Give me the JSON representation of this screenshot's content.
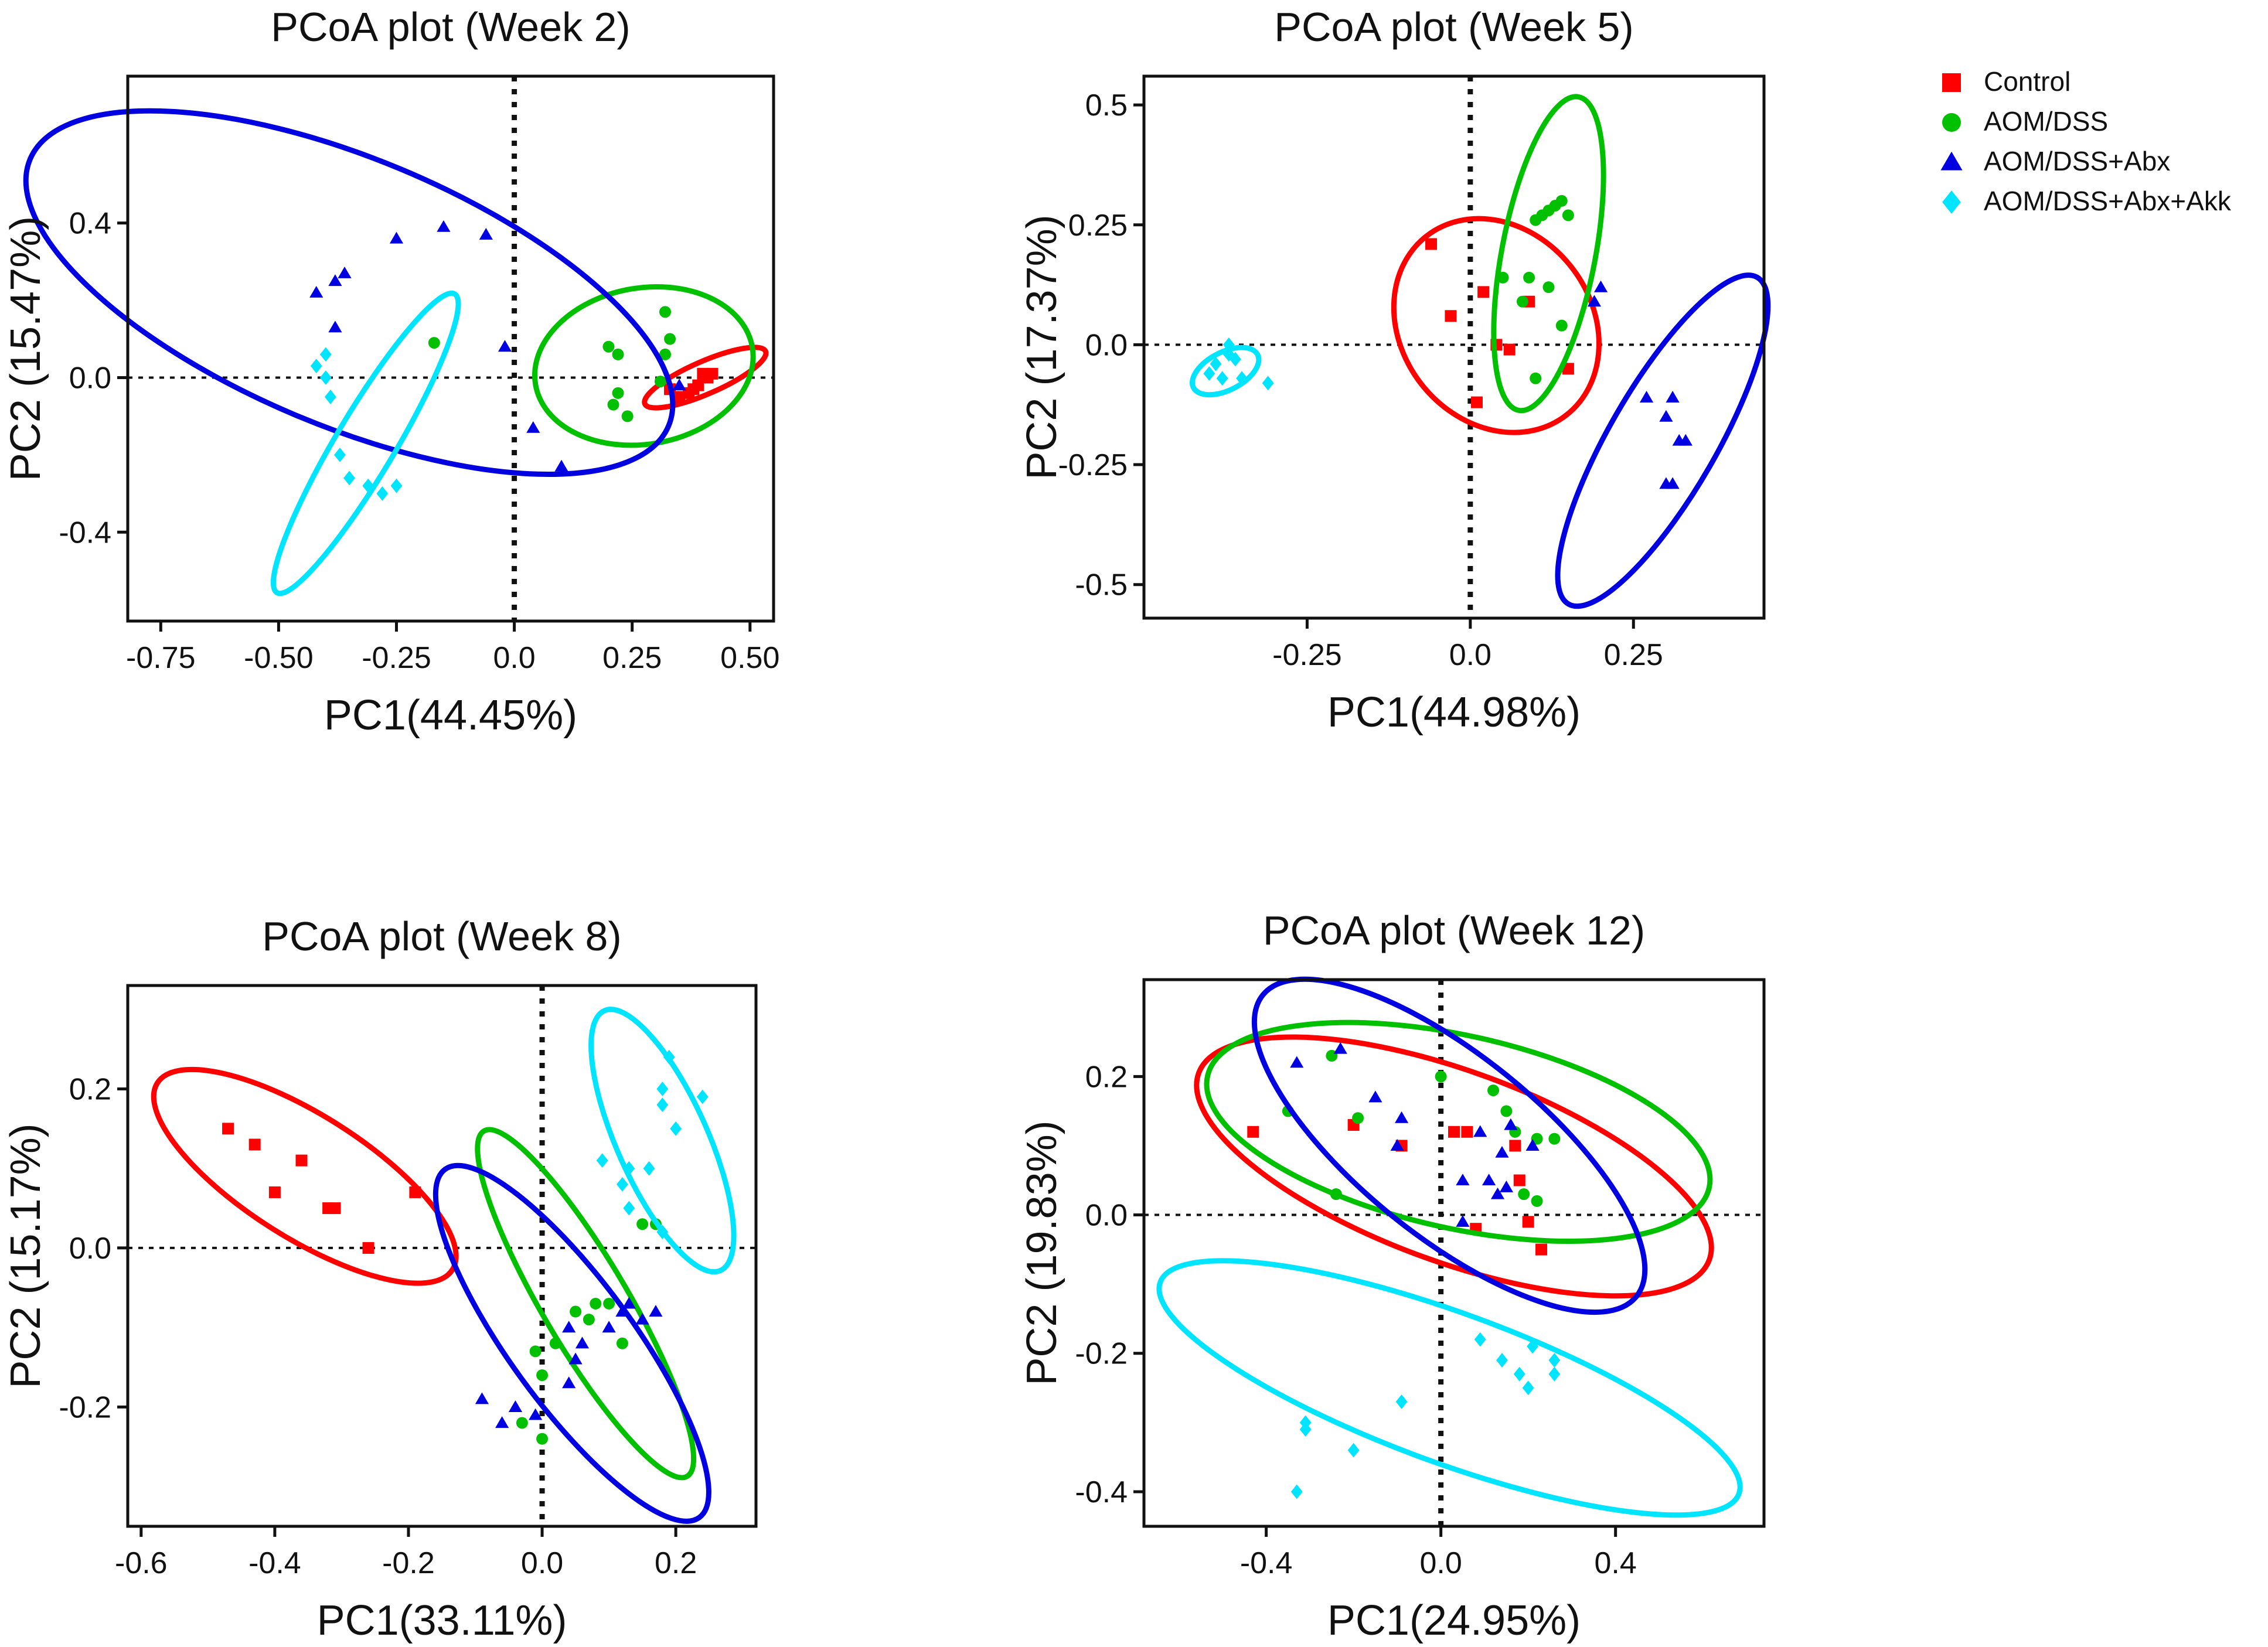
{
  "legend": {
    "placement": "top-right",
    "items": [
      {
        "label": "Control",
        "color": "#ff0000",
        "marker": "square"
      },
      {
        "label": "AOM/DSS",
        "color": "#00c000",
        "marker": "circle"
      },
      {
        "label": "AOM/DSS+Abx",
        "color": "#0000e0",
        "marker": "triangle"
      },
      {
        "label": "AOM/DSS+Abx+Akk",
        "color": "#00e5ff",
        "marker": "diamond"
      }
    ]
  },
  "chart_data": [
    {
      "type": "scatter",
      "title": "PCoA plot (Week 2)",
      "xlabel": "PC1(44.45%)",
      "ylabel": "PC2 (15.47%)",
      "xlim": [
        -0.82,
        0.55
      ],
      "ylim": [
        -0.63,
        0.78
      ],
      "xticks": [
        -0.75,
        -0.5,
        -0.25,
        0.0,
        0.25,
        0.5
      ],
      "xtick_labels": [
        "-0.75",
        "-0.50",
        "-0.25",
        "0.0",
        "0.25",
        "0.50"
      ],
      "yticks": [
        -0.4,
        0.0,
        0.4
      ],
      "ytick_labels": [
        "-0.4",
        "0.0",
        "0.4"
      ],
      "series": [
        {
          "name": "Control",
          "points": [
            [
              0.37,
              -0.04
            ],
            [
              0.39,
              -0.02
            ],
            [
              0.4,
              0.01
            ],
            [
              0.41,
              0.0
            ],
            [
              0.35,
              -0.05
            ],
            [
              0.33,
              -0.03
            ],
            [
              0.42,
              0.01
            ],
            [
              0.38,
              -0.03
            ]
          ],
          "ellipse": {
            "cx": 0.405,
            "cy": 0.0,
            "rx": 0.145,
            "ry": 0.04,
            "angle": 28
          }
        },
        {
          "name": "AOM/DSS",
          "points": [
            [
              -0.17,
              0.09
            ],
            [
              0.2,
              0.08
            ],
            [
              0.22,
              0.06
            ],
            [
              0.32,
              0.17
            ],
            [
              0.33,
              0.1
            ],
            [
              0.32,
              0.06
            ],
            [
              0.22,
              -0.04
            ],
            [
              0.21,
              -0.07
            ],
            [
              0.24,
              -0.1
            ],
            [
              0.31,
              -0.01
            ]
          ],
          "ellipse": {
            "cx": 0.275,
            "cy": 0.03,
            "rx": 0.235,
            "ry": 0.2,
            "angle": 12
          }
        },
        {
          "name": "AOM/DSS+Abx",
          "points": [
            [
              -0.42,
              0.22
            ],
            [
              -0.38,
              0.25
            ],
            [
              -0.36,
              0.27
            ],
            [
              -0.25,
              0.36
            ],
            [
              -0.15,
              0.39
            ],
            [
              -0.06,
              0.37
            ],
            [
              -0.38,
              0.13
            ],
            [
              -0.02,
              0.08
            ],
            [
              0.04,
              -0.13
            ],
            [
              0.1,
              -0.23
            ],
            [
              0.35,
              -0.02
            ]
          ],
          "ellipse": {
            "cx": -0.35,
            "cy": 0.22,
            "rx": 0.76,
            "ry": 0.33,
            "angle": -27
          }
        },
        {
          "name": "AOM/DSS+Abx+Akk",
          "points": [
            [
              -0.4,
              0.06
            ],
            [
              -0.42,
              0.03
            ],
            [
              -0.4,
              0.0
            ],
            [
              -0.39,
              -0.05
            ],
            [
              -0.37,
              -0.2
            ],
            [
              -0.35,
              -0.26
            ],
            [
              -0.31,
              -0.28
            ],
            [
              -0.28,
              -0.3
            ],
            [
              -0.25,
              -0.28
            ]
          ],
          "ellipse": {
            "cx": -0.315,
            "cy": -0.17,
            "rx": 0.43,
            "ry": 0.065,
            "angle": 64
          }
        }
      ]
    },
    {
      "type": "scatter",
      "title": "PCoA plot (Week 5)",
      "xlabel": "PC1(44.98%)",
      "ylabel": "PC2 (17.37%)",
      "xlim": [
        -0.5,
        0.45
      ],
      "ylim": [
        -0.57,
        0.56
      ],
      "xticks": [
        -0.25,
        0.0,
        0.25
      ],
      "xtick_labels": [
        "-0.25",
        "0.0",
        "0.25"
      ],
      "yticks": [
        -0.5,
        -0.25,
        0.0,
        0.25,
        0.5
      ],
      "ytick_labels": [
        "-0.5",
        "-0.25",
        "0.0",
        "0.25",
        "0.5"
      ],
      "series": [
        {
          "name": "Control",
          "points": [
            [
              -0.06,
              0.21
            ],
            [
              0.02,
              0.11
            ],
            [
              -0.03,
              0.06
            ],
            [
              0.09,
              0.09
            ],
            [
              0.04,
              0.0
            ],
            [
              0.06,
              -0.01
            ],
            [
              0.15,
              -0.05
            ],
            [
              0.01,
              -0.12
            ]
          ],
          "ellipse": {
            "cx": 0.04,
            "cy": 0.04,
            "rx": 0.215,
            "ry": 0.155,
            "angle": -60
          }
        },
        {
          "name": "AOM/DSS",
          "points": [
            [
              0.1,
              0.26
            ],
            [
              0.11,
              0.27
            ],
            [
              0.13,
              0.29
            ],
            [
              0.14,
              0.3
            ],
            [
              0.12,
              0.28
            ],
            [
              0.15,
              0.27
            ],
            [
              0.05,
              0.14
            ],
            [
              0.09,
              0.14
            ],
            [
              0.12,
              0.12
            ],
            [
              0.08,
              0.09
            ],
            [
              0.14,
              0.04
            ],
            [
              0.1,
              -0.07
            ]
          ],
          "ellipse": {
            "cx": 0.12,
            "cy": 0.19,
            "rx": 0.33,
            "ry": 0.072,
            "angle": 82
          }
        },
        {
          "name": "AOM/DSS+Abx",
          "points": [
            [
              0.2,
              0.12
            ],
            [
              0.19,
              0.09
            ],
            [
              0.27,
              -0.11
            ],
            [
              0.31,
              -0.11
            ],
            [
              0.3,
              -0.15
            ],
            [
              0.32,
              -0.2
            ],
            [
              0.33,
              -0.2
            ],
            [
              0.3,
              -0.29
            ],
            [
              0.31,
              -0.29
            ]
          ],
          "ellipse": {
            "cx": 0.295,
            "cy": -0.2,
            "rx": 0.37,
            "ry": 0.085,
            "angle": 67
          }
        },
        {
          "name": "AOM/DSS+Abx+Akk",
          "points": [
            [
              -0.4,
              -0.06
            ],
            [
              -0.39,
              -0.04
            ],
            [
              -0.38,
              -0.07
            ],
            [
              -0.37,
              -0.02
            ],
            [
              -0.36,
              -0.03
            ],
            [
              -0.35,
              -0.07
            ],
            [
              -0.37,
              0.0
            ],
            [
              -0.31,
              -0.08
            ]
          ],
          "ellipse": {
            "cx": -0.375,
            "cy": -0.055,
            "rx": 0.06,
            "ry": 0.035,
            "angle": 35
          }
        }
      ]
    },
    {
      "type": "scatter",
      "title": "PCoA plot (Week 8)",
      "xlabel": "PC1(33.11%)",
      "ylabel": "PC2 (15.17%)",
      "xlim": [
        -0.62,
        0.32
      ],
      "ylim": [
        -0.35,
        0.33
      ],
      "xticks": [
        -0.6,
        -0.4,
        -0.2,
        0.0,
        0.2
      ],
      "xtick_labels": [
        "-0.6",
        "-0.4",
        "-0.2",
        "0.0",
        "0.2"
      ],
      "yticks": [
        -0.2,
        0.0,
        0.2
      ],
      "ytick_labels": [
        "-0.2",
        "0.0",
        "0.2"
      ],
      "series": [
        {
          "name": "Control",
          "points": [
            [
              -0.47,
              0.15
            ],
            [
              -0.43,
              0.13
            ],
            [
              -0.36,
              0.11
            ],
            [
              -0.4,
              0.07
            ],
            [
              -0.32,
              0.05
            ],
            [
              -0.31,
              0.05
            ],
            [
              -0.19,
              0.07
            ],
            [
              -0.26,
              0.0
            ]
          ],
          "ellipse": {
            "cx": -0.355,
            "cy": 0.09,
            "rx": 0.25,
            "ry": 0.08,
            "angle": -28
          }
        },
        {
          "name": "AOM/DSS",
          "points": [
            [
              0.08,
              -0.07
            ],
            [
              0.1,
              -0.07
            ],
            [
              0.07,
              -0.09
            ],
            [
              0.05,
              -0.08
            ],
            [
              0.02,
              -0.12
            ],
            [
              -0.01,
              -0.13
            ],
            [
              0.0,
              -0.16
            ],
            [
              0.12,
              -0.12
            ],
            [
              0.15,
              0.03
            ],
            [
              0.17,
              0.03
            ],
            [
              -0.03,
              -0.22
            ],
            [
              0.0,
              -0.24
            ]
          ],
          "ellipse": {
            "cx": 0.065,
            "cy": -0.07,
            "rx": 0.265,
            "ry": 0.06,
            "angle": -55
          }
        },
        {
          "name": "AOM/DSS+Abx",
          "points": [
            [
              0.13,
              -0.07
            ],
            [
              0.12,
              -0.08
            ],
            [
              0.15,
              -0.09
            ],
            [
              0.04,
              -0.1
            ],
            [
              0.06,
              -0.12
            ],
            [
              0.05,
              -0.14
            ],
            [
              0.1,
              -0.1
            ],
            [
              0.04,
              -0.17
            ],
            [
              -0.09,
              -0.19
            ],
            [
              -0.04,
              -0.2
            ],
            [
              -0.06,
              -0.22
            ],
            [
              -0.01,
              -0.21
            ],
            [
              0.17,
              -0.08
            ]
          ],
          "ellipse": {
            "cx": 0.045,
            "cy": -0.12,
            "rx": 0.29,
            "ry": 0.085,
            "angle": -49
          }
        },
        {
          "name": "AOM/DSS+Abx+Akk",
          "points": [
            [
              0.19,
              0.24
            ],
            [
              0.18,
              0.2
            ],
            [
              0.18,
              0.18
            ],
            [
              0.24,
              0.19
            ],
            [
              0.2,
              0.15
            ],
            [
              0.09,
              0.11
            ],
            [
              0.13,
              0.1
            ],
            [
              0.12,
              0.08
            ],
            [
              0.16,
              0.1
            ],
            [
              0.13,
              0.05
            ],
            [
              0.18,
              0.02
            ]
          ],
          "ellipse": {
            "cx": 0.18,
            "cy": 0.135,
            "rx": 0.185,
            "ry": 0.065,
            "angle": -62
          }
        }
      ]
    },
    {
      "type": "scatter",
      "title": "PCoA plot (Week 12)",
      "xlabel": "PC1(24.95%)",
      "ylabel": "PC2 (19.83%)",
      "xlim": [
        -0.68,
        0.74
      ],
      "ylim": [
        -0.45,
        0.34
      ],
      "xticks": [
        -0.4,
        0.0,
        0.4
      ],
      "xtick_labels": [
        "-0.4",
        "0.0",
        "0.4"
      ],
      "yticks": [
        -0.4,
        -0.2,
        0.0,
        0.2
      ],
      "ytick_labels": [
        "-0.4",
        "-0.2",
        "0.0",
        "0.2"
      ],
      "series": [
        {
          "name": "Control",
          "points": [
            [
              -0.43,
              0.12
            ],
            [
              -0.2,
              0.13
            ],
            [
              -0.09,
              0.1
            ],
            [
              0.03,
              0.12
            ],
            [
              0.06,
              0.12
            ],
            [
              0.17,
              0.1
            ],
            [
              0.18,
              0.05
            ],
            [
              0.08,
              -0.02
            ],
            [
              0.2,
              -0.01
            ],
            [
              0.23,
              -0.05
            ]
          ],
          "ellipse": {
            "cx": 0.03,
            "cy": 0.07,
            "rx": 0.6,
            "ry": 0.14,
            "angle": -13
          }
        },
        {
          "name": "AOM/DSS",
          "points": [
            [
              -0.25,
              0.23
            ],
            [
              -0.19,
              0.14
            ],
            [
              -0.35,
              0.15
            ],
            [
              0.0,
              0.2
            ],
            [
              0.12,
              0.18
            ],
            [
              0.15,
              0.15
            ],
            [
              0.17,
              0.12
            ],
            [
              0.22,
              0.11
            ],
            [
              0.26,
              0.11
            ],
            [
              -0.24,
              0.03
            ],
            [
              0.19,
              0.03
            ],
            [
              0.22,
              0.02
            ]
          ],
          "ellipse": {
            "cx": 0.04,
            "cy": 0.12,
            "rx": 0.58,
            "ry": 0.14,
            "angle": -8
          }
        },
        {
          "name": "AOM/DSS+Abx",
          "points": [
            [
              -0.33,
              0.22
            ],
            [
              -0.23,
              0.24
            ],
            [
              -0.15,
              0.17
            ],
            [
              -0.09,
              0.14
            ],
            [
              -0.1,
              0.1
            ],
            [
              0.09,
              0.12
            ],
            [
              0.16,
              0.13
            ],
            [
              0.14,
              0.09
            ],
            [
              0.21,
              0.1
            ],
            [
              0.05,
              0.05
            ],
            [
              0.11,
              0.05
            ],
            [
              0.15,
              0.04
            ],
            [
              0.13,
              0.03
            ],
            [
              0.05,
              -0.01
            ]
          ],
          "ellipse": {
            "cx": 0.02,
            "cy": 0.1,
            "rx": 0.48,
            "ry": 0.14,
            "angle": -27
          }
        },
        {
          "name": "AOM/DSS+Abx+Akk",
          "points": [
            [
              0.09,
              -0.18
            ],
            [
              0.21,
              -0.19
            ],
            [
              0.14,
              -0.21
            ],
            [
              0.26,
              -0.21
            ],
            [
              0.18,
              -0.23
            ],
            [
              0.26,
              -0.23
            ],
            [
              0.2,
              -0.25
            ],
            [
              -0.09,
              -0.27
            ],
            [
              -0.31,
              -0.3
            ],
            [
              -0.31,
              -0.31
            ],
            [
              -0.2,
              -0.34
            ],
            [
              -0.33,
              -0.4
            ]
          ],
          "ellipse": {
            "cx": 0.02,
            "cy": -0.25,
            "rx": 0.68,
            "ry": 0.11,
            "angle": -13
          }
        }
      ]
    }
  ]
}
